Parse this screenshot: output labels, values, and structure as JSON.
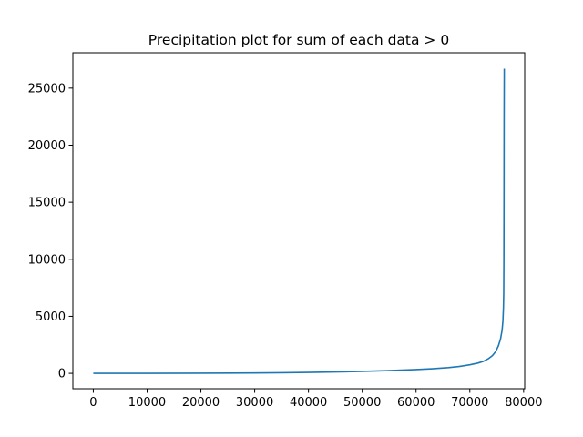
{
  "chart_data": {
    "type": "line",
    "title": "Precipitation plot for sum of each data > 0",
    "xlabel": "",
    "ylabel": "",
    "xlim": [
      -3800,
      80200
    ],
    "ylim": [
      -1350,
      28100
    ],
    "x_ticks": [
      0,
      10000,
      20000,
      30000,
      40000,
      50000,
      60000,
      70000,
      80000
    ],
    "x_tick_labels": [
      "0",
      "10000",
      "20000",
      "30000",
      "40000",
      "50000",
      "60000",
      "70000",
      "80000"
    ],
    "y_ticks": [
      0,
      5000,
      10000,
      15000,
      20000,
      25000
    ],
    "y_tick_labels": [
      "0",
      "5000",
      "10000",
      "15000",
      "20000",
      "25000"
    ],
    "grid": false,
    "legend": "none",
    "series": [
      {
        "color": "#1f77b4",
        "x": [
          0,
          10000,
          20000,
          30000,
          35000,
          40000,
          45000,
          50000,
          55000,
          60000,
          63000,
          66000,
          68000,
          70000,
          71500,
          72500,
          73500,
          74200,
          74800,
          75300,
          75700,
          76000,
          76150,
          76250,
          76300,
          76330,
          76350,
          76370,
          76400
        ],
        "y": [
          0,
          5,
          15,
          30,
          50,
          80,
          120,
          170,
          240,
          330,
          400,
          500,
          600,
          750,
          900,
          1050,
          1300,
          1550,
          1900,
          2400,
          3000,
          3800,
          4600,
          5800,
          7000,
          10000,
          15000,
          22000,
          26700
        ]
      }
    ]
  }
}
